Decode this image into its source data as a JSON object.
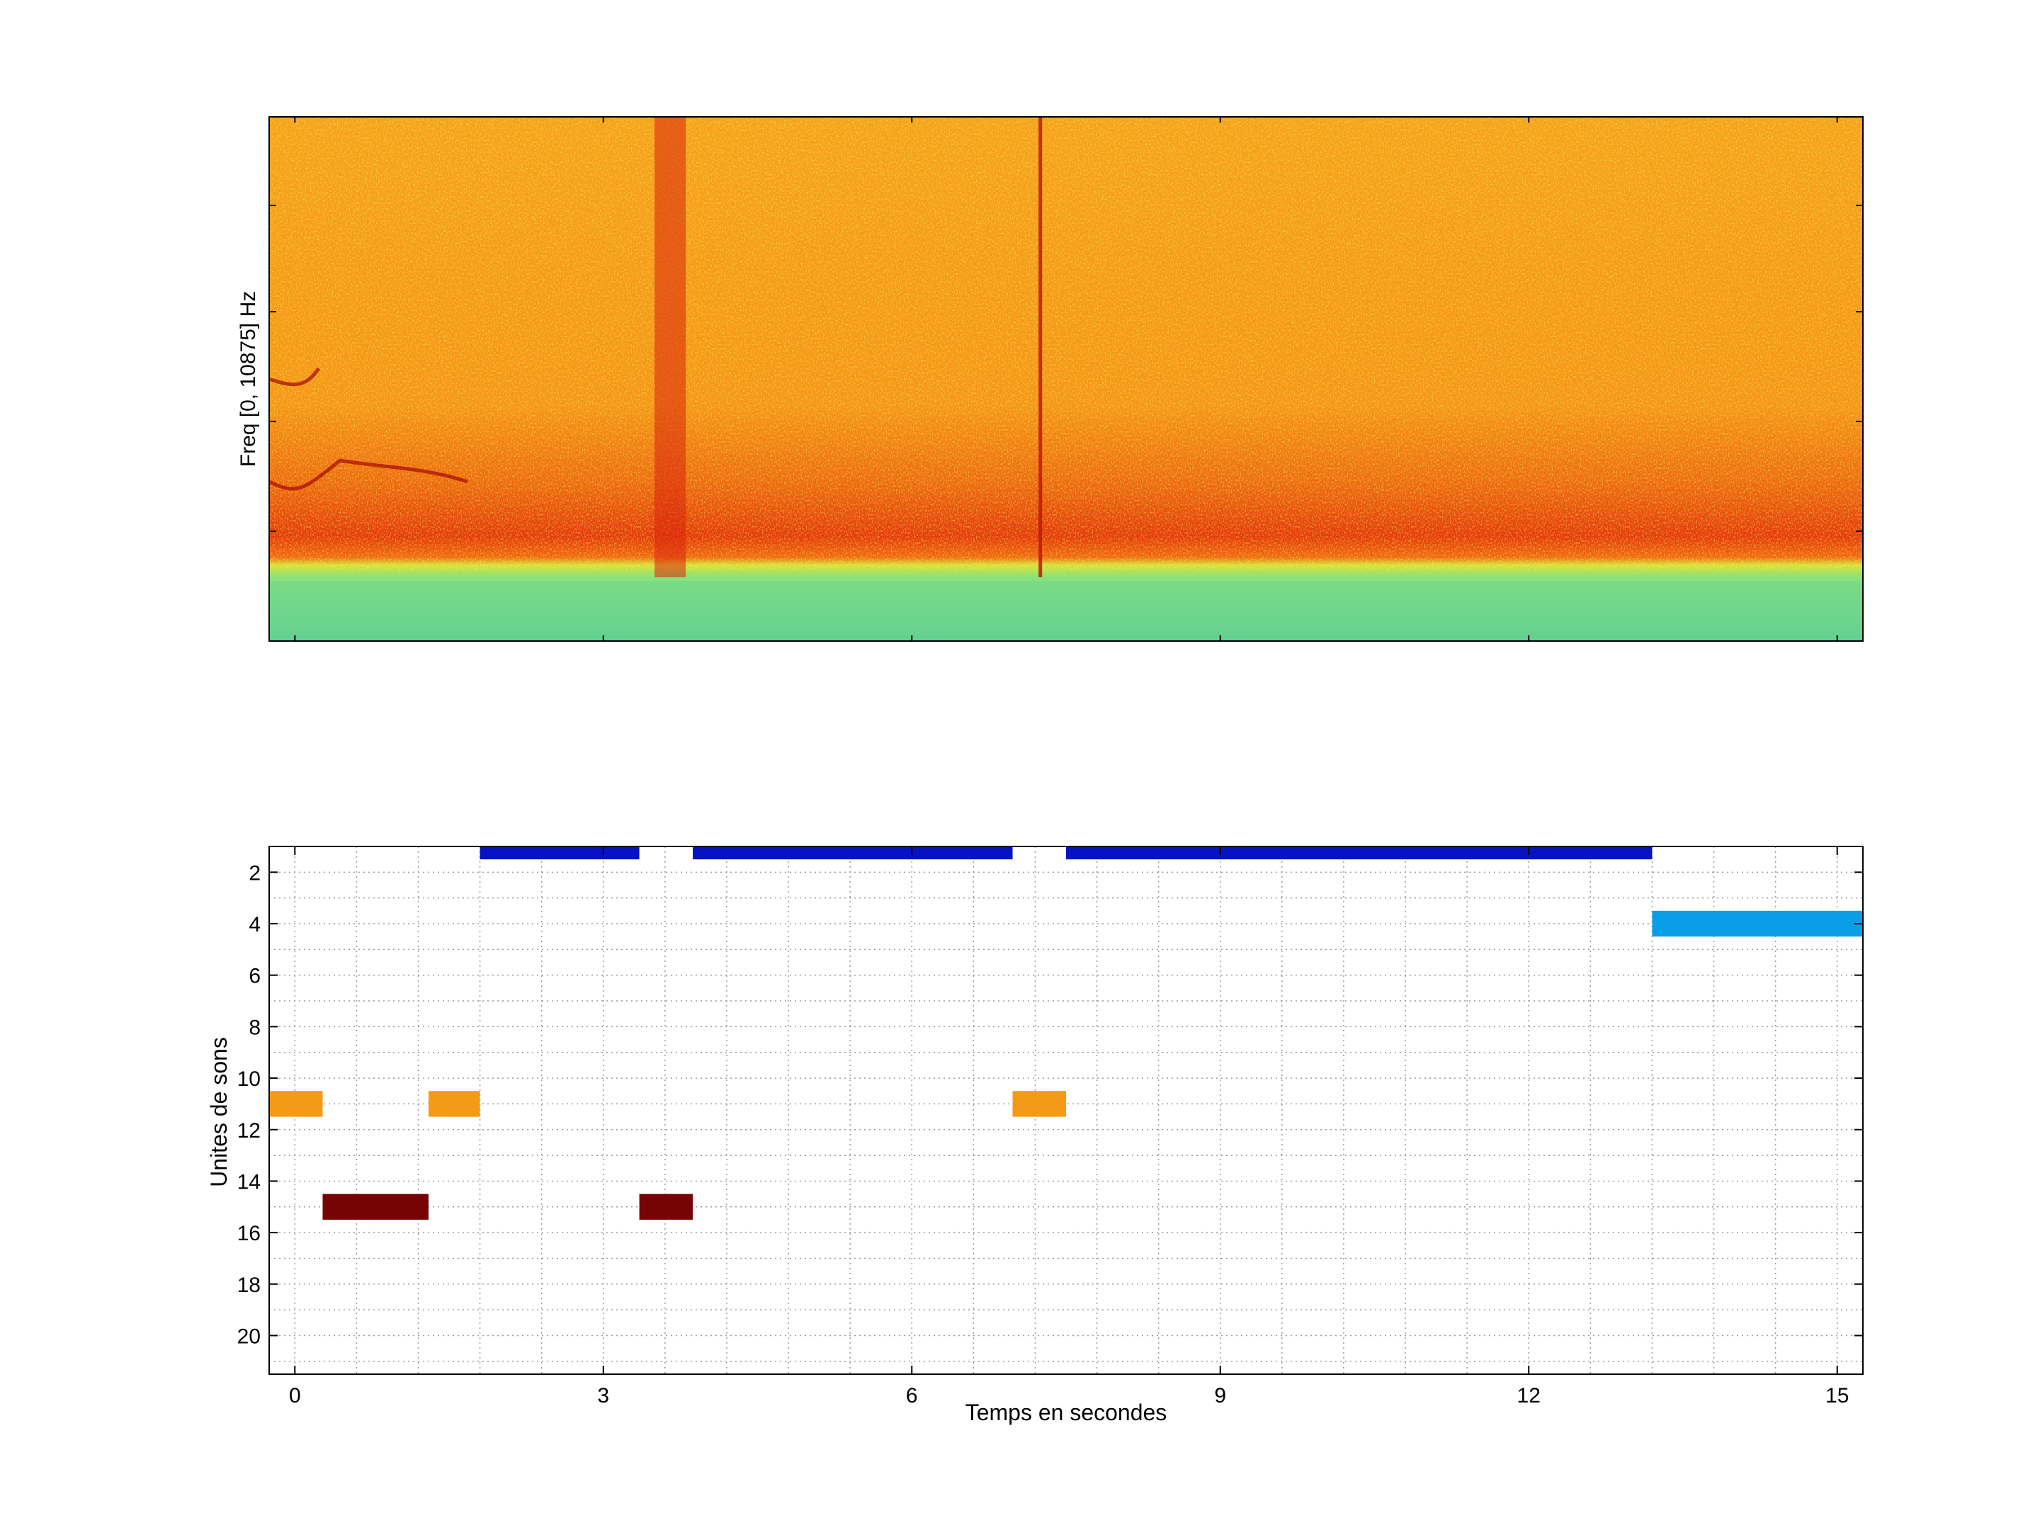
{
  "chart_data": [
    {
      "type": "heatmap",
      "title": "",
      "xlabel": "",
      "ylabel": "Freq [0, 10875] Hz",
      "xlim": [
        -0.25,
        15.25
      ],
      "colormap": "jet",
      "features": {
        "broadband_bands": [
          {
            "time": 3.65,
            "intensity": "strong"
          },
          {
            "time": 7.25,
            "intensity": "narrow"
          }
        ],
        "low_frequency_band": "strong red band just above the green floor",
        "floor_color": "green/cyan"
      }
    },
    {
      "type": "bar",
      "title": "",
      "xlabel": "Temps en secondes",
      "ylabel": "Unites de sons",
      "xlim": [
        -0.25,
        15.25
      ],
      "ylim": [
        21.5,
        1
      ],
      "grid": true,
      "xticks": [
        "0",
        "3",
        "6",
        "9",
        "12",
        "15"
      ],
      "yticks": [
        "2",
        "4",
        "6",
        "8",
        "10",
        "12",
        "14",
        "16",
        "18",
        "20"
      ],
      "segments": [
        {
          "unit": 1,
          "start": 1.8,
          "end": 3.35,
          "color": "#0513c4"
        },
        {
          "unit": 1,
          "start": 3.87,
          "end": 6.98,
          "color": "#0513c4"
        },
        {
          "unit": 1,
          "start": 7.5,
          "end": 13.2,
          "color": "#0513c4"
        },
        {
          "unit": 4,
          "start": 13.2,
          "end": 15.25,
          "color": "#0a9ee6"
        },
        {
          "unit": 11,
          "start": -0.25,
          "end": 0.27,
          "color": "#f59a16"
        },
        {
          "unit": 11,
          "start": 1.3,
          "end": 1.8,
          "color": "#f59a16"
        },
        {
          "unit": 11,
          "start": 6.98,
          "end": 7.5,
          "color": "#f59a16"
        },
        {
          "unit": 15,
          "start": 0.27,
          "end": 1.3,
          "color": "#770404"
        },
        {
          "unit": 15,
          "start": 3.35,
          "end": 3.87,
          "color": "#770404"
        }
      ]
    }
  ]
}
